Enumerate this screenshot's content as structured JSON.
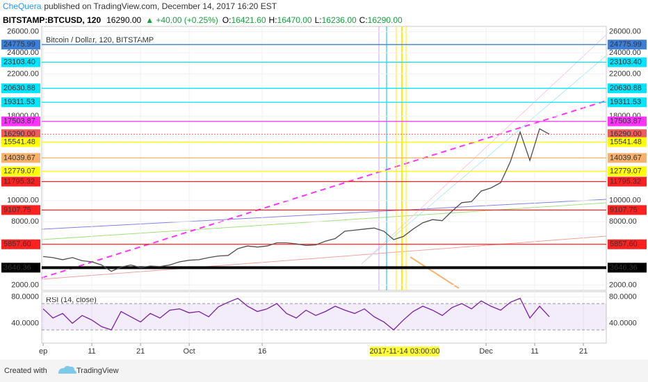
{
  "header": {
    "author": "CheQuera",
    "published": "published on TradingView.com, December 14, 2017 16:20 EST",
    "symbol": "BITSTAMP:BTCUSD, 120",
    "last": "16290.00",
    "change": "▲ +40.00 (+0.25%)",
    "ohlc": [
      {
        "label": "O:",
        "value": "16421.60"
      },
      {
        "label": "H:",
        "value": "16470.00"
      },
      {
        "label": "L:",
        "value": "16236.00"
      },
      {
        "label": "C:",
        "value": "16290.00"
      }
    ]
  },
  "chart_data": [
    {
      "type": "line",
      "title": "Bitcoin / Dollar, 120, BITSTAMP",
      "color": "#4d4d4d",
      "x": [
        0,
        2,
        4,
        6,
        8,
        10,
        12,
        14,
        16,
        18,
        20,
        22,
        24,
        26,
        28,
        30,
        32,
        34,
        36,
        38,
        40,
        42,
        44,
        46,
        48,
        50,
        52,
        54,
        56,
        58,
        60,
        62,
        64,
        66,
        68,
        70,
        72,
        74,
        76,
        78,
        80,
        82,
        84,
        86,
        88,
        90,
        92,
        94,
        96,
        98,
        100,
        102,
        104
      ],
      "values": [
        4700,
        4600,
        4400,
        4600,
        4300,
        4200,
        3900,
        3300,
        3700,
        3900,
        3650,
        3800,
        3750,
        3900,
        4200,
        4350,
        4400,
        4600,
        4750,
        4800,
        5450,
        5700,
        5600,
        5700,
        6000,
        6000,
        5900,
        5750,
        5800,
        6150,
        6400,
        7100,
        7200,
        7300,
        7400,
        7100,
        6300,
        6600,
        7300,
        7900,
        8200,
        8100,
        9000,
        9800,
        9900,
        10900,
        11200,
        11700,
        13700,
        16500,
        13800,
        16800,
        16290
      ],
      "xlim": [
        -0.3,
        115.7
      ],
      "xticks": [
        {
          "value": 0,
          "label": "ep"
        },
        {
          "value": 10,
          "label": "11"
        },
        {
          "value": 20,
          "label": "21"
        },
        {
          "value": 30,
          "label": "Oct"
        },
        {
          "value": 45,
          "label": "16"
        },
        {
          "value": 91,
          "label": "Dec"
        },
        {
          "value": 101,
          "label": "11"
        },
        {
          "value": 111,
          "label": "21"
        }
      ],
      "ylim": [
        1500,
        26500
      ],
      "yticks": [
        {
          "value": 2000,
          "label": "2000.00"
        },
        {
          "value": 8000,
          "label": "8000.00"
        },
        {
          "value": 10000,
          "label": "10000.00"
        },
        {
          "value": 18000,
          "label": "18000.00"
        },
        {
          "value": 22000,
          "label": "22000.00"
        },
        {
          "value": 24000,
          "label": "24000.00"
        },
        {
          "value": 26000,
          "label": "26000.00"
        }
      ],
      "levels": {
        "values": [
          24775.99,
          23103.4,
          20630.88,
          19311.53,
          17503.87,
          16290,
          15541.48,
          14039.67,
          12779.07,
          11795.32,
          9107.75,
          5857.6,
          3646.36
        ],
        "value_labels": [
          "24775.99",
          "23103.40",
          "20630.88",
          "19311.53",
          "17503.87",
          "16290.00",
          "15541.48",
          "14039.67",
          "12779.07",
          "11795.32",
          "9107.75",
          "5857.60",
          "3646.36"
        ],
        "colors": [
          "#3d7fd6",
          "#00e5ff",
          "#00e5ff",
          "#00e5ff",
          "#ff33ff",
          "#f05a5a",
          "#ffff00",
          "#f6b26b",
          "#ffff00",
          "#ff2020",
          "#ff2020",
          "#ff2020",
          "#000000"
        ],
        "label_text_colors": [
          "#ffffff",
          "#000000",
          "#000000",
          "#000000",
          "#ffffff",
          "#ffffff",
          "#000000",
          "#000000",
          "#000000",
          "#ffffff",
          "#ffffff",
          "#ffffff",
          "#ffffff"
        ]
      },
      "annotation": "2017-11-14 03:00:00"
    },
    {
      "type": "line",
      "title": "RSI (14, close)",
      "color": "#7b1fa2",
      "x": [
        0,
        2,
        4,
        6,
        8,
        10,
        12,
        14,
        16,
        18,
        20,
        22,
        24,
        26,
        28,
        30,
        32,
        34,
        36,
        38,
        40,
        42,
        44,
        46,
        48,
        50,
        52,
        54,
        56,
        58,
        60,
        62,
        64,
        66,
        68,
        70,
        72,
        74,
        76,
        78,
        80,
        82,
        84,
        86,
        88,
        90,
        92,
        94,
        96,
        98,
        100,
        102,
        104
      ],
      "values": [
        62,
        48,
        55,
        40,
        52,
        45,
        35,
        30,
        58,
        50,
        42,
        55,
        48,
        60,
        62,
        56,
        58,
        50,
        65,
        72,
        78,
        66,
        58,
        62,
        70,
        55,
        48,
        60,
        52,
        58,
        66,
        60,
        55,
        62,
        50,
        42,
        30,
        45,
        58,
        66,
        60,
        52,
        64,
        70,
        62,
        74,
        66,
        60,
        72,
        78,
        48,
        66,
        50
      ],
      "xlim": [
        -0.3,
        115.7
      ],
      "ylim": [
        10,
        88
      ],
      "yticks": [
        {
          "value": 40,
          "label": "40.0000"
        },
        {
          "value": 80,
          "label": "80.0000"
        }
      ],
      "band": [
        30,
        70
      ]
    }
  ],
  "footer": {
    "created": "Created with",
    "brand": "TradingView"
  }
}
